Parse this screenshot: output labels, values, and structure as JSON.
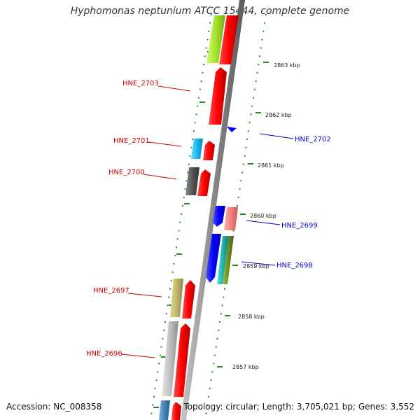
{
  "title": "Hyphomonas neptunium ATCC 15444, complete genome",
  "footer": {
    "accession": "Accession: NC_008358",
    "topology": "Topology: circular; Length: 3,705,021 bp; Genes: 3,552"
  },
  "scale_labels": [
    "2863 kbp",
    "2862 kbp",
    "2861 kbp",
    "2860 kbp",
    "2859 kbp",
    "2858 kbp",
    "2857 kbp"
  ],
  "gene_labels": {
    "hne_2703": "HNE_2703",
    "hne_2702": "HNE_2702",
    "hne_2701": "HNE_2701",
    "hne_2700": "HNE_2700",
    "hne_2699": "HNE_2699",
    "hne_2698": "HNE_2698",
    "hne_2697": "HNE_2697",
    "hne_2696": "HNE_2696"
  },
  "colors": {
    "backbone": "#888888",
    "ticks": "#228b22",
    "label_left": "#cc0000",
    "label_right": "#0000cc",
    "cds_red": "#ff0000",
    "cds_blue": "#0000ff"
  }
}
